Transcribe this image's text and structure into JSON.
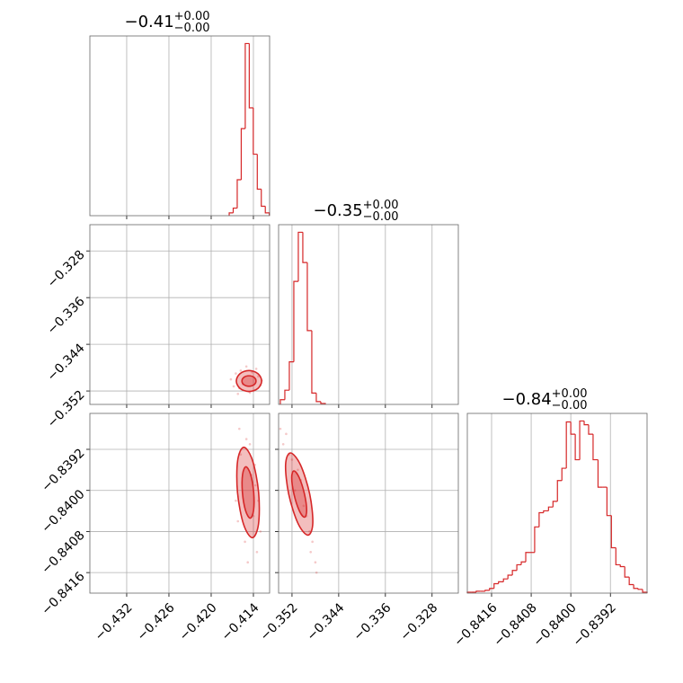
{
  "chart_data": [
    {
      "type": "histogram",
      "title": "−0.41",
      "title_plus": "+0.00",
      "title_minus": "−0.00",
      "color": "#d62728",
      "xlim": [
        -0.43723,
        -0.4117
      ],
      "xticks": [
        {
          "value": -0.432,
          "label": "−0.432"
        },
        {
          "value": -0.426,
          "label": "−0.426"
        },
        {
          "value": -0.42,
          "label": "−0.420"
        },
        {
          "value": -0.414,
          "label": "−0.414"
        }
      ],
      "ylim": [
        0,
        190
      ],
      "grid": true,
      "bins": [
        -0.41744,
        -0.41687,
        -0.4163,
        -0.41573,
        -0.41516,
        -0.41459,
        -0.41402,
        -0.41345,
        -0.41288,
        -0.41231,
        -0.41174
      ],
      "values": [
        3,
        8,
        38,
        92,
        182,
        114,
        65,
        28,
        10,
        3
      ]
    },
    {
      "type": "scatter",
      "color": "#d62728",
      "grid": true,
      "xlim": [
        -0.43723,
        -0.4117
      ],
      "xticks": [
        {
          "value": -0.432,
          "label": "−0.432"
        },
        {
          "value": -0.426,
          "label": "−0.426"
        },
        {
          "value": -0.42,
          "label": "−0.420"
        },
        {
          "value": -0.414,
          "label": "−0.414"
        }
      ],
      "ylim": [
        -0.3543,
        -0.3235
      ],
      "yticks": [
        {
          "value": -0.352,
          "label": "−0.352"
        },
        {
          "value": -0.344,
          "label": "−0.344"
        },
        {
          "value": -0.336,
          "label": "−0.336"
        },
        {
          "value": -0.328,
          "label": "−0.328"
        }
      ],
      "x": [
        -0.4172,
        -0.4165,
        -0.416,
        -0.4158,
        -0.4133,
        -0.413,
        -0.414,
        -0.415,
        -0.4162,
        -0.4136,
        -0.4145,
        -0.4155,
        -0.4142,
        -0.4168,
        -0.4128
      ],
      "y": [
        -0.35,
        -0.349,
        -0.3515,
        -0.3485,
        -0.3495,
        -0.351,
        -0.352,
        -0.3478,
        -0.3525,
        -0.3482,
        -0.3523,
        -0.3508,
        -0.3488,
        -0.3512,
        -0.3502
      ],
      "contours": [
        {
          "x": [
            -0.41283,
            -0.41336,
            -0.41463,
            -0.4159,
            -0.41643,
            -0.4159,
            -0.41463,
            -0.41336
          ],
          "y": [
            -0.35029,
            -0.34902,
            -0.34849,
            -0.34902,
            -0.35029,
            -0.35156,
            -0.35209,
            -0.35156
          ]
        },
        {
          "x": [
            -0.41363,
            -0.41392,
            -0.41463,
            -0.41534,
            -0.41563,
            -0.41534,
            -0.41463,
            -0.41392
          ],
          "y": [
            -0.35029,
            -0.34965,
            -0.34939,
            -0.34965,
            -0.35029,
            -0.35093,
            -0.35119,
            -0.35093
          ]
        }
      ]
    },
    {
      "type": "histogram",
      "title": "−0.35",
      "title_plus": "+0.00",
      "title_minus": "−0.00",
      "color": "#d62728",
      "xlim": [
        -0.3543,
        -0.3235
      ],
      "xticks": [
        {
          "value": -0.352,
          "label": "−0.352"
        },
        {
          "value": -0.344,
          "label": "−0.344"
        },
        {
          "value": -0.336,
          "label": "−0.336"
        },
        {
          "value": -0.328,
          "label": "−0.328"
        }
      ],
      "ylim": [
        0,
        190
      ],
      "grid": true,
      "bins": [
        -0.354,
        -0.35323,
        -0.35246,
        -0.35169,
        -0.35092,
        -0.35015,
        -0.34938,
        -0.34861,
        -0.34784,
        -0.34707,
        -0.3463
      ],
      "values": [
        5,
        15,
        45,
        130,
        182,
        150,
        78,
        12,
        3,
        1
      ]
    },
    {
      "type": "scatter",
      "color": "#d62728",
      "grid": true,
      "xlim": [
        -0.43723,
        -0.4117
      ],
      "xticks": [
        {
          "value": -0.432,
          "label": "−0.432"
        },
        {
          "value": -0.426,
          "label": "−0.426"
        },
        {
          "value": -0.42,
          "label": "−0.420"
        },
        {
          "value": -0.414,
          "label": "−0.414"
        }
      ],
      "ylim": [
        -0.842,
        -0.8385
      ],
      "yticks": [
        {
          "value": -0.8416,
          "label": "−0.8416"
        },
        {
          "value": -0.8408,
          "label": "−0.8408"
        },
        {
          "value": -0.84,
          "label": "−0.8400"
        },
        {
          "value": -0.8392,
          "label": "−0.8392"
        }
      ],
      "x": [
        -0.416,
        -0.4145,
        -0.4138,
        -0.4152,
        -0.4165,
        -0.4135,
        -0.414,
        -0.4148,
        -0.413,
        -0.4158,
        -0.4143,
        -0.4137,
        -0.415,
        -0.4162,
        -0.4133
      ],
      "y": [
        -0.8388,
        -0.8391,
        -0.8395,
        -0.841,
        -0.8402,
        -0.8412,
        -0.8405,
        -0.8414,
        -0.8408,
        -0.8393,
        -0.8397,
        -0.8399,
        -0.839,
        -0.8406,
        -0.8402
      ],
      "contours": [
        {
          "x": [
            -0.41326,
            -0.41412,
            -0.41536,
            -0.41624,
            -0.41626,
            -0.4154,
            -0.41416,
            -0.41328
          ],
          "y": [
            -0.84004,
            -0.83942,
            -0.83916,
            -0.83942,
            -0.84004,
            -0.84066,
            -0.84092,
            -0.84066
          ]
        },
        {
          "x": [
            -0.41396,
            -0.4144,
            -0.41506,
            -0.41554,
            -0.41556,
            -0.41512,
            -0.41446,
            -0.41398
          ],
          "y": [
            -0.84004,
            -0.83969,
            -0.83954,
            -0.83969,
            -0.84004,
            -0.84039,
            -0.84054,
            -0.84039
          ]
        }
      ]
    },
    {
      "type": "scatter",
      "color": "#d62728",
      "grid": true,
      "xlim": [
        -0.3543,
        -0.3235
      ],
      "xticks": [
        {
          "value": -0.352,
          "label": "−0.352"
        },
        {
          "value": -0.344,
          "label": "−0.344"
        },
        {
          "value": -0.336,
          "label": "−0.336"
        },
        {
          "value": -0.328,
          "label": "−0.328"
        }
      ],
      "ylim": [
        -0.842,
        -0.8385
      ],
      "yticks": [
        {
          "value": -0.8416,
          "label": "−0.8416"
        },
        {
          "value": -0.8408,
          "label": "−0.8408"
        },
        {
          "value": -0.84,
          "label": "−0.8400"
        },
        {
          "value": -0.8392,
          "label": "−0.8392"
        }
      ],
      "x": [
        -0.353,
        -0.3525,
        -0.351,
        -0.3495,
        -0.3485,
        -0.348,
        -0.3535,
        -0.3515,
        -0.349,
        -0.35,
        -0.352,
        -0.3505,
        -0.3478,
        -0.354,
        -0.3488
      ],
      "y": [
        -0.8389,
        -0.8393,
        -0.8396,
        -0.8405,
        -0.841,
        -0.8414,
        -0.8391,
        -0.84,
        -0.8408,
        -0.8403,
        -0.8394,
        -0.8398,
        -0.8416,
        -0.8388,
        -0.8412
      ],
      "contours": [
        {
          "x": [
            -0.34897,
            -0.35056,
            -0.35227,
            -0.3531,
            -0.35257,
            -0.35098,
            -0.34927,
            -0.34844
          ],
          "y": [
            -0.84007,
            -0.8395,
            -0.83927,
            -0.8395,
            -0.84007,
            -0.84064,
            -0.84087,
            -0.84064
          ]
        },
        {
          "x": [
            -0.34987,
            -0.35077,
            -0.35167,
            -0.35205,
            -0.35167,
            -0.35077,
            -0.34987,
            -0.34949
          ],
          "y": [
            -0.84007,
            -0.83975,
            -0.83962,
            -0.83975,
            -0.84007,
            -0.84039,
            -0.84052,
            -0.84039
          ]
        }
      ]
    },
    {
      "type": "histogram",
      "title": "−0.84",
      "title_plus": "+0.00",
      "title_minus": "−0.00",
      "color": "#d62728",
      "xlim": [
        -0.84209,
        -0.83846
      ],
      "xticks": [
        {
          "value": -0.8416,
          "label": "−0.8416"
        },
        {
          "value": -0.8408,
          "label": "−0.8408"
        },
        {
          "value": -0.84,
          "label": "−0.8400"
        },
        {
          "value": -0.8392,
          "label": "−0.8392"
        }
      ],
      "ylim": [
        0,
        190
      ],
      "grid": true,
      "bins": [
        -0.84209,
        -0.842,
        -0.84191,
        -0.84182,
        -0.84173,
        -0.84164,
        -0.84155,
        -0.84146,
        -0.84136,
        -0.84127,
        -0.84118,
        -0.84109,
        -0.841,
        -0.84091,
        -0.84082,
        -0.84073,
        -0.84064,
        -0.84055,
        -0.84045,
        -0.84036,
        -0.84027,
        -0.84018,
        -0.84009,
        -0.84,
        -0.83991,
        -0.83982,
        -0.83973,
        -0.83964,
        -0.83955,
        -0.83945,
        -0.83936,
        -0.83927,
        -0.83918,
        -0.83909,
        -0.839,
        -0.83891,
        -0.83882,
        -0.83873,
        -0.83864,
        -0.83855,
        -0.83846
      ],
      "values": [
        1,
        1,
        2,
        2,
        3,
        5,
        10,
        12,
        15,
        19,
        24,
        30,
        33,
        43,
        43,
        70,
        85,
        87,
        91,
        97,
        119,
        132,
        181,
        168,
        141,
        182,
        178,
        168,
        141,
        112,
        112,
        82,
        48,
        30,
        28,
        17,
        9,
        5,
        4,
        1
      ]
    }
  ]
}
